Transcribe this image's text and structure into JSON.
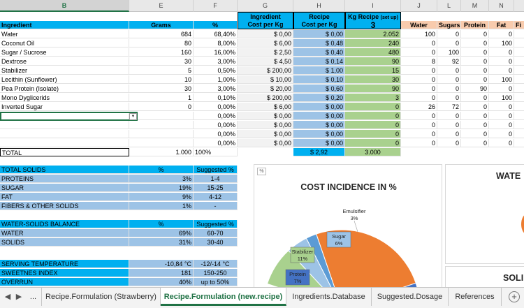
{
  "columns": [
    "B",
    "E",
    "F",
    "G",
    "H",
    "I",
    "J",
    "L",
    "M",
    "N"
  ],
  "header": {
    "ingredient": "Ingredient",
    "grams": "Grams",
    "pct": "%",
    "cost_per_kg_l1": "Ingredient",
    "cost_per_kg_l2": "Cost per Kg",
    "recipe_cost_l1": "Recipe",
    "recipe_cost_l2": "Cost per Kg",
    "kg_recipe_label": "Kg Recipe",
    "kg_recipe_setup": "(set up)",
    "kg_recipe_value": "3",
    "nutrients": [
      "Water",
      "Sugars",
      "Protein",
      "Fat",
      "Fi"
    ]
  },
  "rows": [
    {
      "name": "Water",
      "grams": "684",
      "pct": "68,40%",
      "cost": "$ 0,00",
      "rcost": "$ 0,00",
      "kg": "2.052",
      "n": [
        "100",
        "0",
        "0",
        "0",
        ""
      ]
    },
    {
      "name": "Coconut Oil",
      "grams": "80",
      "pct": "8,00%",
      "cost": "$ 6,00",
      "rcost": "$ 0,48",
      "kg": "240",
      "n": [
        "0",
        "0",
        "0",
        "100",
        ""
      ]
    },
    {
      "name": "Sugar / Sucrose",
      "grams": "160",
      "pct": "16,00%",
      "cost": "$ 2,50",
      "rcost": "$ 0,40",
      "kg": "480",
      "n": [
        "0",
        "100",
        "0",
        "0",
        ""
      ]
    },
    {
      "name": "Dextrose",
      "grams": "30",
      "pct": "3,00%",
      "cost": "$ 4,50",
      "rcost": "$ 0,14",
      "kg": "90",
      "n": [
        "8",
        "92",
        "0",
        "0",
        ""
      ]
    },
    {
      "name": "Stabilizer",
      "grams": "5",
      "pct": "0,50%",
      "cost": "$ 200,00",
      "rcost": "$ 1,00",
      "kg": "15",
      "n": [
        "0",
        "0",
        "0",
        "0",
        ""
      ]
    },
    {
      "name": "Lecithin (Sunflower)",
      "grams": "10",
      "pct": "1,00%",
      "cost": "$ 10,00",
      "rcost": "$ 0,10",
      "kg": "30",
      "n": [
        "0",
        "0",
        "0",
        "100",
        ""
      ]
    },
    {
      "name": "Pea Protein (Isolate)",
      "grams": "30",
      "pct": "3,00%",
      "cost": "$ 20,00",
      "rcost": "$ 0,60",
      "kg": "90",
      "n": [
        "0",
        "0",
        "90",
        "0",
        ""
      ]
    },
    {
      "name": "Mono Dyglicerids",
      "grams": "1",
      "pct": "0,10%",
      "cost": "$ 200,00",
      "rcost": "$ 0,20",
      "kg": "3",
      "n": [
        "0",
        "0",
        "0",
        "100",
        ""
      ]
    },
    {
      "name": "Inverted Sugar",
      "grams": "0",
      "pct": "0,00%",
      "cost": "$ 6,00",
      "rcost": "$ 0,00",
      "kg": "0",
      "n": [
        "26",
        "72",
        "0",
        "0",
        ""
      ]
    },
    {
      "name": "",
      "grams": "",
      "pct": "0,00%",
      "cost": "$ 0,00",
      "rcost": "$ 0,00",
      "kg": "0",
      "n": [
        "0",
        "0",
        "0",
        "0",
        ""
      ]
    },
    {
      "name": "",
      "grams": "",
      "pct": "0,00%",
      "cost": "$ 0,00",
      "rcost": "$ 0,00",
      "kg": "0",
      "n": [
        "0",
        "0",
        "0",
        "0",
        ""
      ]
    },
    {
      "name": "",
      "grams": "",
      "pct": "0,00%",
      "cost": "$ 0,00",
      "rcost": "$ 0,00",
      "kg": "0",
      "n": [
        "0",
        "0",
        "0",
        "0",
        ""
      ]
    },
    {
      "name": "",
      "grams": "",
      "pct": "0,00%",
      "cost": "$ 0,00",
      "rcost": "$ 0,00",
      "kg": "0",
      "n": [
        "0",
        "0",
        "0",
        "0",
        ""
      ]
    }
  ],
  "total": {
    "label": "TOTAL",
    "grams": "1.000",
    "pct": "100%",
    "rcost": "$ 2,92",
    "kg": "3.000"
  },
  "solids": {
    "title": "TOTAL SOLIDS",
    "pct_h": "%",
    "sugg_h": "Suggested %",
    "rows": [
      {
        "name": "PROTEINS",
        "pct": "3%",
        "sugg": "1-4"
      },
      {
        "name": "SUGAR",
        "pct": "19%",
        "sugg": "15-25"
      },
      {
        "name": "FAT",
        "pct": "9%",
        "sugg": "4-12"
      },
      {
        "name": "FIBERS & OTHER SOLIDS",
        "pct": "1%",
        "sugg": "-"
      }
    ]
  },
  "balance": {
    "title": "WATER-SOLIDS BALANCE",
    "pct_h": "%",
    "sugg_h": "Suggested %",
    "rows": [
      {
        "name": "WATER",
        "pct": "69%",
        "sugg": "60-70"
      },
      {
        "name": "SOLIDS",
        "pct": "31%",
        "sugg": "30-40"
      }
    ]
  },
  "serving": {
    "rows": [
      {
        "name": "SERVING TEMPERATURE",
        "val": "-10,84 °C",
        "sugg": "-12/-14 °C"
      },
      {
        "name": "SWEETNES INDEX",
        "val": "181",
        "sugg": "150-250"
      },
      {
        "name": "OVERRUN",
        "val": "40%",
        "sugg": "up to 50%"
      }
    ]
  },
  "chart_data": {
    "type": "pie",
    "title": "COST INCIDENCE IN %",
    "slices": [
      {
        "label": "Stabilizer",
        "pct": "11%",
        "value": 11,
        "color": "#a9d18e"
      },
      {
        "label": "Sugar",
        "pct": "6%",
        "value": 6,
        "color": "#9dc3e6"
      },
      {
        "label": "Emulsifier",
        "pct": "3%",
        "value": 3,
        "color": "#5b9bd5"
      },
      {
        "label": "",
        "pct": "",
        "value": 34,
        "color": "#ed7d31"
      },
      {
        "label": "Protein",
        "pct": "7%",
        "value": 7,
        "color": "#4472c4"
      }
    ]
  },
  "right_panels": {
    "top": "WATE",
    "bottom": "SOLI"
  },
  "tabs": {
    "nav_prev": "◀",
    "nav_next": "▶",
    "ellipsis": "...",
    "items": [
      "Recipe.Formulation (Strawberry)",
      "Recipe.Formulation (new.recipe)",
      "Ingredients.Database",
      "Suggested.Dosage",
      "References"
    ],
    "active": 1,
    "add": "+"
  },
  "colors": {
    "header_blue": "#00b0f0",
    "light_blue": "#9dc3e6",
    "green": "#a9d18e",
    "peach": "#f8cbad",
    "excel_green": "#217346"
  }
}
